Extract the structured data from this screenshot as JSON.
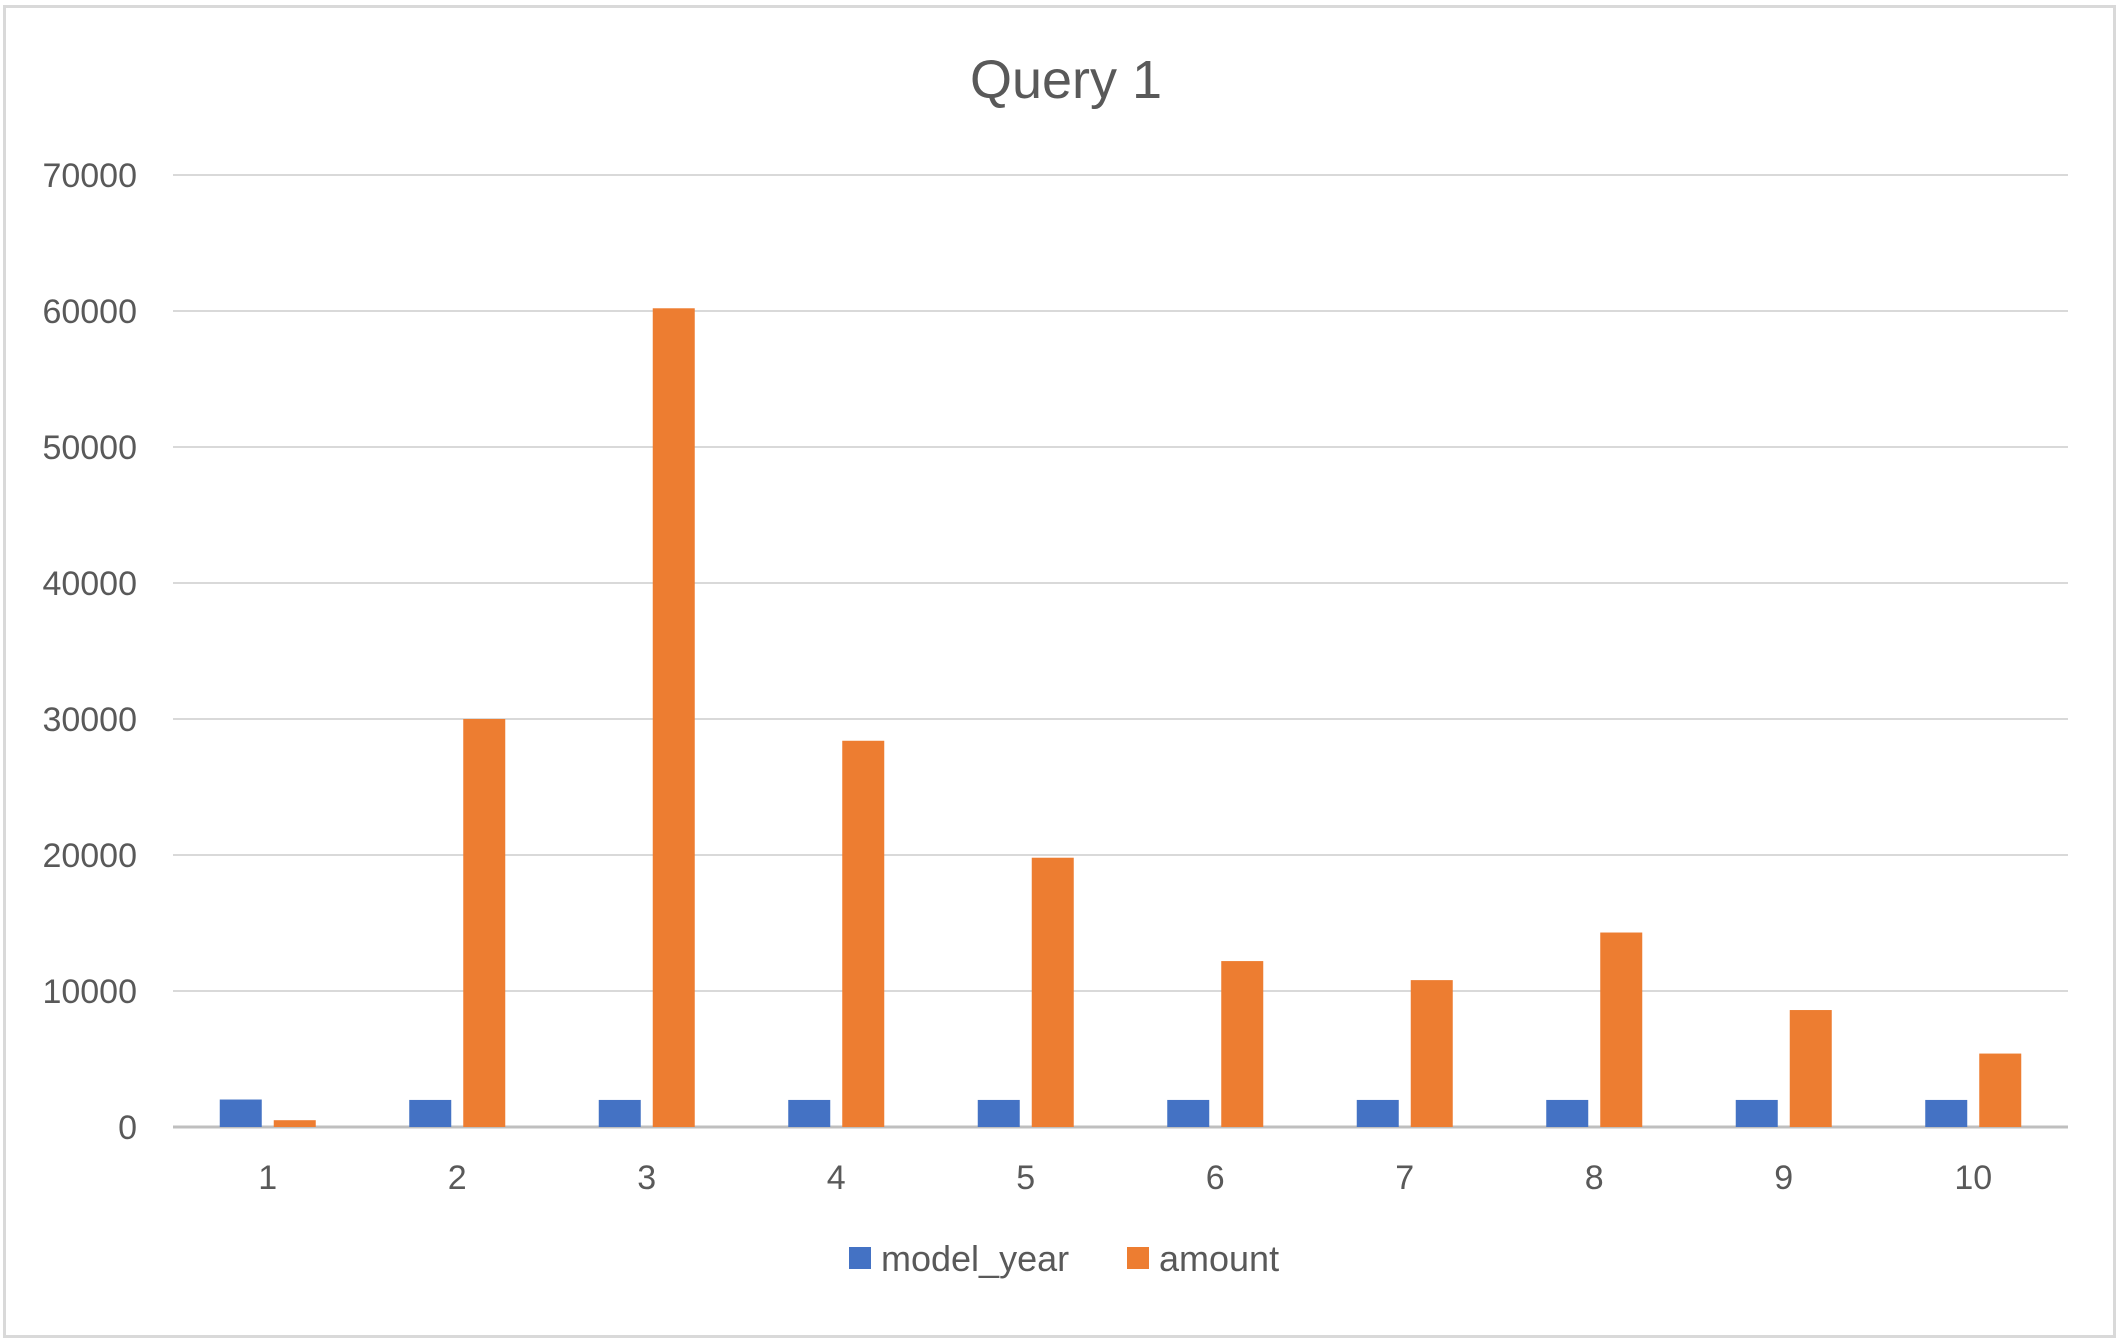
{
  "chart_data": {
    "type": "bar",
    "title": "Query 1",
    "xlabel": "",
    "ylabel": "",
    "categories": [
      "1",
      "2",
      "3",
      "4",
      "5",
      "6",
      "7",
      "8",
      "9",
      "10"
    ],
    "series": [
      {
        "name": "model_year",
        "color": "#4472C4",
        "values": [
          2020,
          1990,
          1990,
          1990,
          1990,
          1990,
          1990,
          1990,
          1990,
          1990
        ]
      },
      {
        "name": "amount",
        "color": "#ED7D31",
        "values": [
          500,
          30000,
          60200,
          28400,
          19800,
          12200,
          10800,
          14300,
          8600,
          5400
        ]
      }
    ],
    "ylim": [
      0,
      70000
    ],
    "yticks": [
      "0",
      "10000",
      "20000",
      "30000",
      "40000",
      "50000",
      "60000",
      "70000"
    ],
    "grid": true,
    "legend_position": "bottom"
  }
}
